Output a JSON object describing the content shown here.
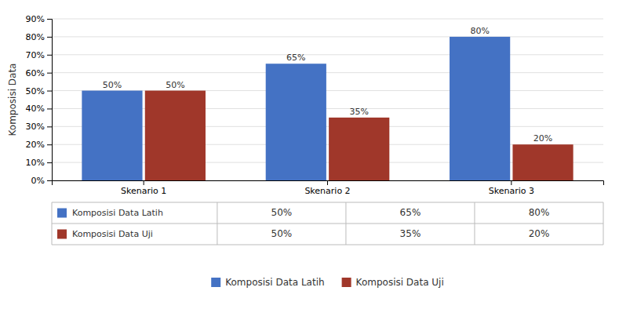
{
  "chart_data": {
    "type": "bar",
    "categories": [
      "Skenario 1",
      "Skenario 2",
      "Skenario 3"
    ],
    "series": [
      {
        "name": "Komposisi Data Latih",
        "color": "#4472C4",
        "values": [
          0.5,
          0.65,
          0.8
        ],
        "value_labels": [
          "50%",
          "65%",
          "80%"
        ]
      },
      {
        "name": "Komposisi Data Uji",
        "color": "#A0372A",
        "values": [
          0.5,
          0.35,
          0.2
        ],
        "value_labels": [
          "50%",
          "35%",
          "20%"
        ]
      }
    ],
    "ylabel": "Komposisi Data",
    "ylim": [
      0,
      0.9
    ],
    "yticks": [
      {
        "value": 0.0,
        "label": "0%"
      },
      {
        "value": 0.1,
        "label": "10%"
      },
      {
        "value": 0.2,
        "label": "20%"
      },
      {
        "value": 0.3,
        "label": "30%"
      },
      {
        "value": 0.4,
        "label": "40%"
      },
      {
        "value": 0.5,
        "label": "50%"
      },
      {
        "value": 0.6,
        "label": "60%"
      },
      {
        "value": 0.7,
        "label": "70%"
      },
      {
        "value": 0.8,
        "label": "80%"
      },
      {
        "value": 0.9,
        "label": "90%"
      }
    ],
    "grid": true,
    "data_labels": true,
    "legend": "bottom"
  }
}
